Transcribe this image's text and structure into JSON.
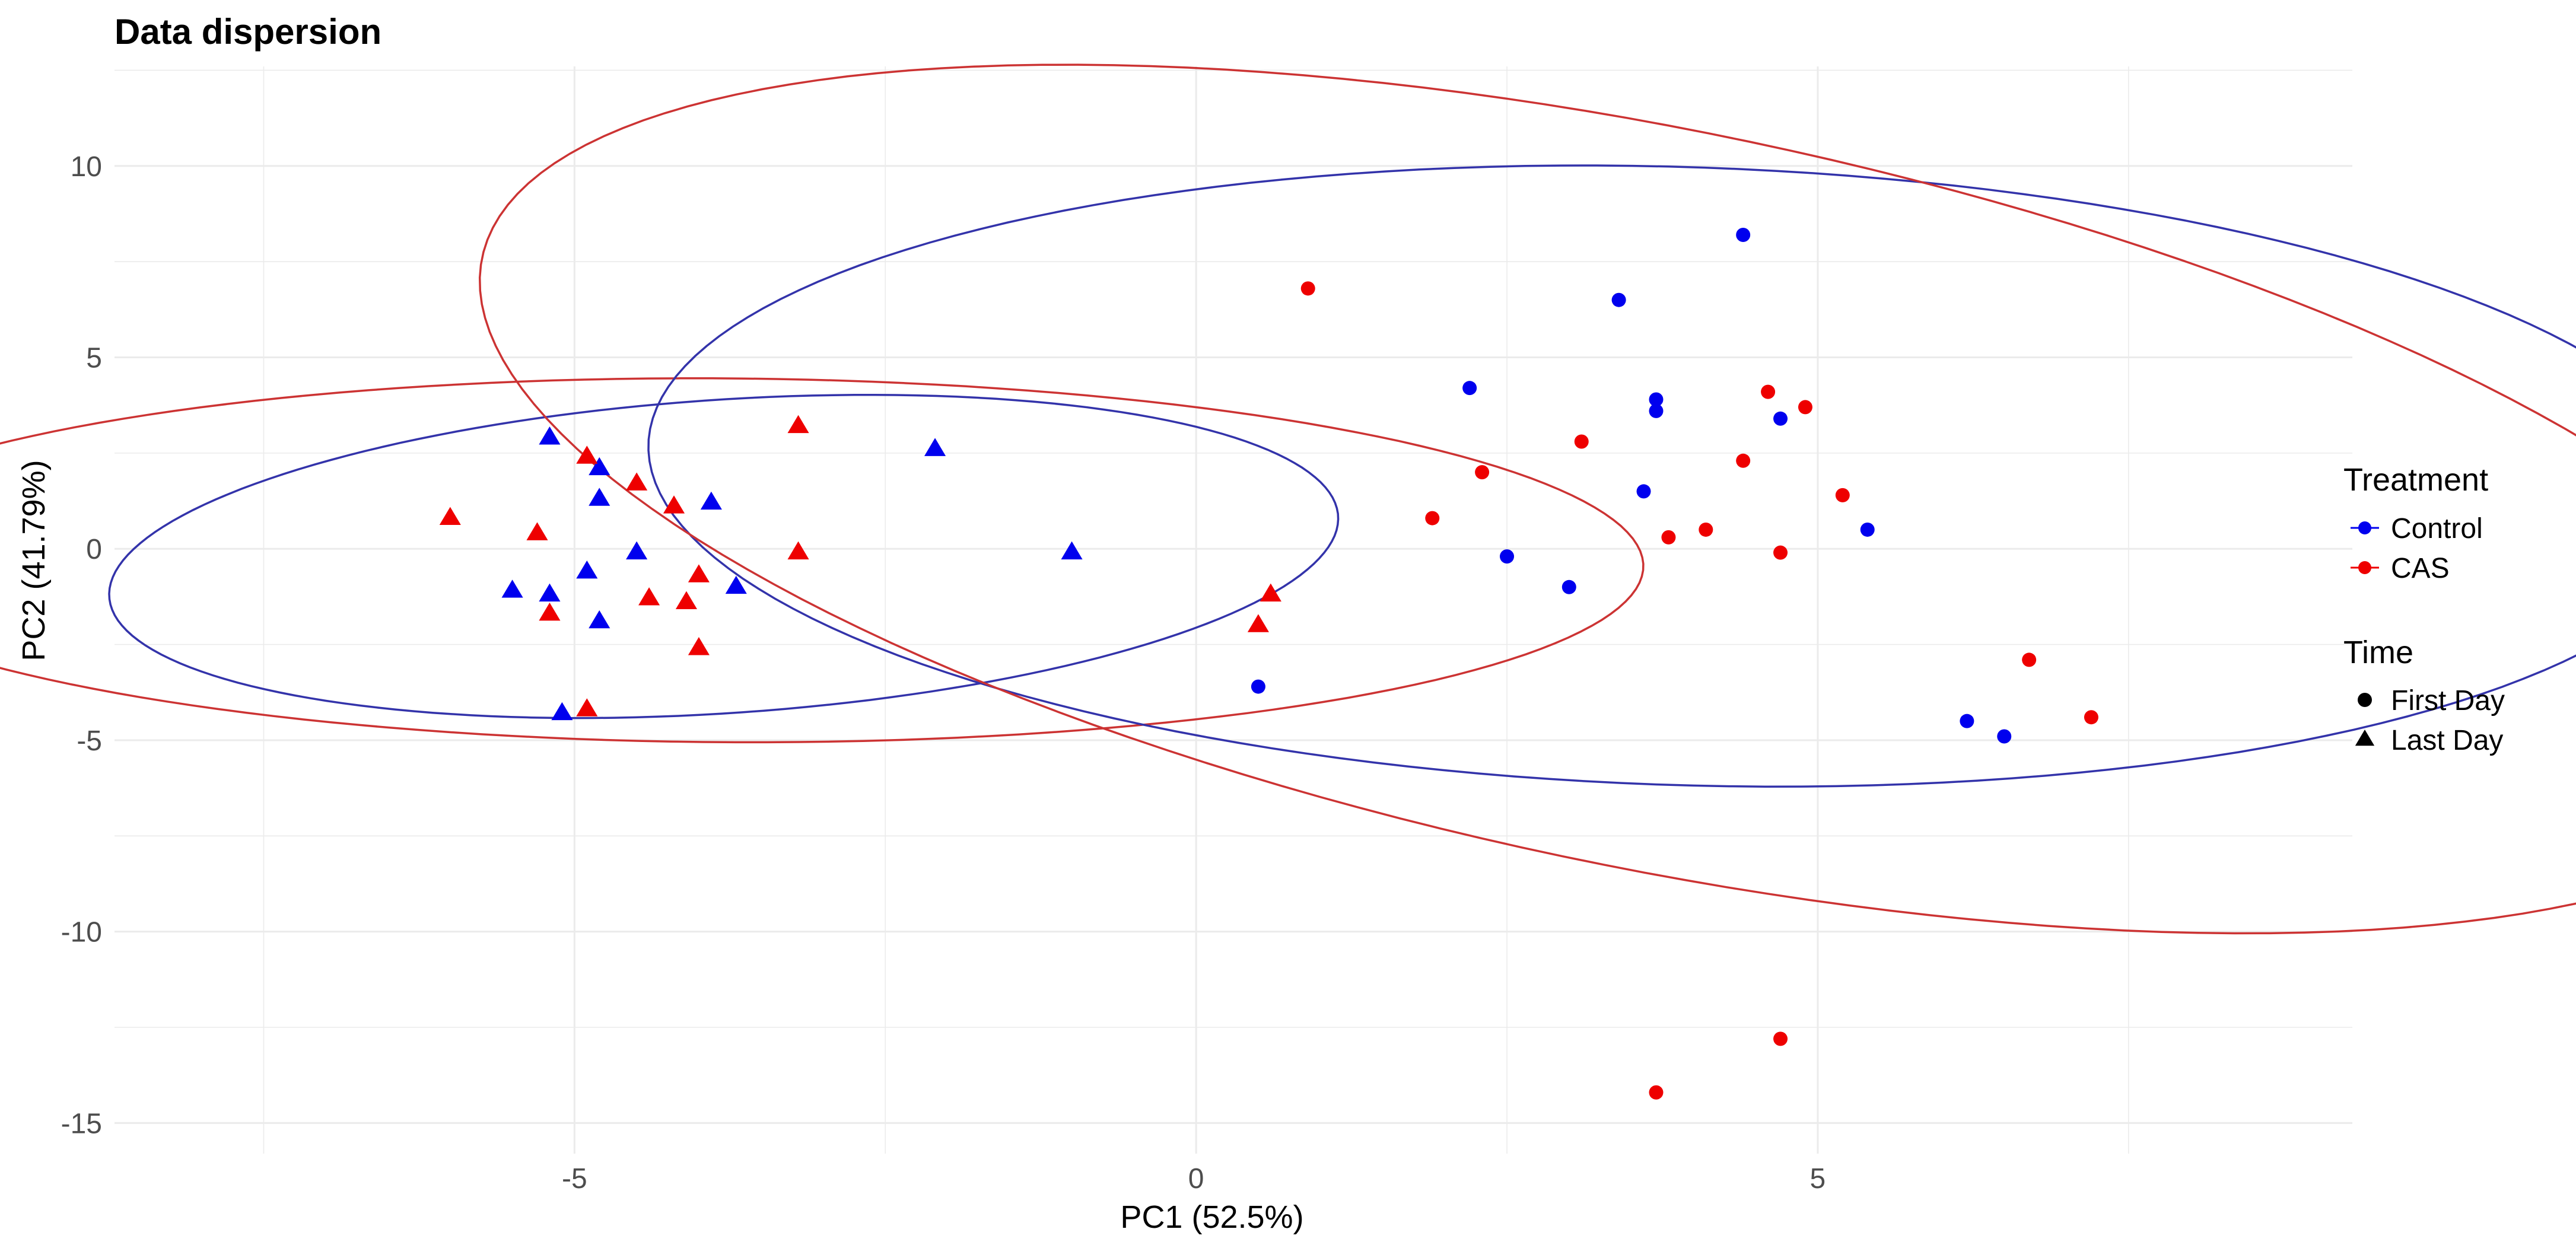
{
  "chart_data": {
    "type": "scatter",
    "title": "Data dispersion",
    "xlabel": "PC1 (52.5%)",
    "ylabel": "PC2 (41.79%)",
    "xlim": [
      -8.7,
      9.3
    ],
    "ylim": [
      -15.8,
      12.6
    ],
    "x_ticks": [
      -5,
      0,
      5
    ],
    "y_ticks": [
      10,
      5,
      0,
      -5,
      -10,
      -15
    ],
    "grid": true,
    "legend": {
      "placement": "right",
      "color_title": "Treatment",
      "shape_title": "Time",
      "color_entries": [
        {
          "label": "Control",
          "color": "#0000ee"
        },
        {
          "label": "CAS",
          "color": "#ee0000"
        }
      ],
      "shape_entries": [
        {
          "label": "First Day",
          "shape": "circle"
        },
        {
          "label": "Last Day",
          "shape": "triangle"
        }
      ]
    },
    "series": [
      {
        "name": "Control / First Day",
        "treatment": "Control",
        "time": "First Day",
        "color": "#0000ee",
        "shape": "circle",
        "points": [
          [
            4.4,
            8.2
          ],
          [
            3.4,
            6.5
          ],
          [
            2.2,
            4.2
          ],
          [
            3.7,
            3.9
          ],
          [
            3.7,
            3.6
          ],
          [
            4.7,
            3.4
          ],
          [
            3.6,
            1.5
          ],
          [
            5.4,
            0.5
          ],
          [
            2.5,
            -0.2
          ],
          [
            3.0,
            -1.0
          ],
          [
            0.5,
            -3.6
          ],
          [
            6.2,
            -4.5
          ],
          [
            6.5,
            -4.9
          ]
        ]
      },
      {
        "name": "CAS / First Day",
        "treatment": "CAS",
        "time": "First Day",
        "color": "#ee0000",
        "shape": "circle",
        "points": [
          [
            0.9,
            6.8
          ],
          [
            4.6,
            4.1
          ],
          [
            4.9,
            3.7
          ],
          [
            3.1,
            2.8
          ],
          [
            4.4,
            2.3
          ],
          [
            2.3,
            2.0
          ],
          [
            5.2,
            1.4
          ],
          [
            1.9,
            0.8
          ],
          [
            4.1,
            0.5
          ],
          [
            3.8,
            0.3
          ],
          [
            4.7,
            -0.1
          ],
          [
            6.7,
            -2.9
          ],
          [
            7.2,
            -4.4
          ],
          [
            4.7,
            -12.8
          ],
          [
            3.7,
            -14.2
          ]
        ]
      },
      {
        "name": "Control / Last Day",
        "treatment": "Control",
        "time": "Last Day",
        "color": "#0000ee",
        "shape": "triangle",
        "points": [
          [
            -5.2,
            2.9
          ],
          [
            -4.8,
            2.1
          ],
          [
            -2.1,
            2.6
          ],
          [
            -4.8,
            1.3
          ],
          [
            -3.9,
            1.2
          ],
          [
            -4.5,
            -0.1
          ],
          [
            -1.0,
            -0.1
          ],
          [
            -4.9,
            -0.6
          ],
          [
            -5.5,
            -1.1
          ],
          [
            -3.7,
            -1.0
          ],
          [
            -5.2,
            -1.2
          ],
          [
            -4.8,
            -1.9
          ],
          [
            -5.1,
            -4.3
          ]
        ]
      },
      {
        "name": "CAS / Last Day",
        "treatment": "CAS",
        "time": "Last Day",
        "color": "#ee0000",
        "shape": "triangle",
        "points": [
          [
            -3.2,
            3.2
          ],
          [
            -4.9,
            2.4
          ],
          [
            -4.5,
            1.7
          ],
          [
            -4.2,
            1.1
          ],
          [
            -6.0,
            0.8
          ],
          [
            -5.3,
            0.4
          ],
          [
            -3.2,
            -0.1
          ],
          [
            -4.0,
            -0.7
          ],
          [
            -4.4,
            -1.3
          ],
          [
            -4.1,
            -1.4
          ],
          [
            -5.2,
            -1.7
          ],
          [
            -4.0,
            -2.6
          ],
          [
            -4.9,
            -4.2
          ],
          [
            0.6,
            -1.2
          ],
          [
            0.5,
            -2.0
          ]
        ]
      }
    ],
    "ellipses": [
      {
        "group": "Control / Last Day",
        "color": "#3333aa",
        "center": [
          -3.8,
          -0.2
        ],
        "semi_axes": [
          5.2,
          3.9
        ],
        "rotation_deg": 28
      },
      {
        "group": "CAS / Last Day",
        "color": "#cc3333",
        "center": [
          -3.8,
          -0.3
        ],
        "semi_axes": [
          7.4,
          4.75
        ],
        "rotation_deg": -2
      },
      {
        "group": "Control / First Day",
        "color": "#3333aa",
        "center": [
          3.9,
          1.9
        ],
        "semi_axes": [
          8.6,
          7.8
        ],
        "rotation_deg": -38
      },
      {
        "group": "CAS / First Day",
        "color": "#cc3333",
        "center": [
          3.7,
          1.3
        ],
        "semi_axes": [
          12.9,
          7.2
        ],
        "rotation_deg": -55
      }
    ]
  }
}
